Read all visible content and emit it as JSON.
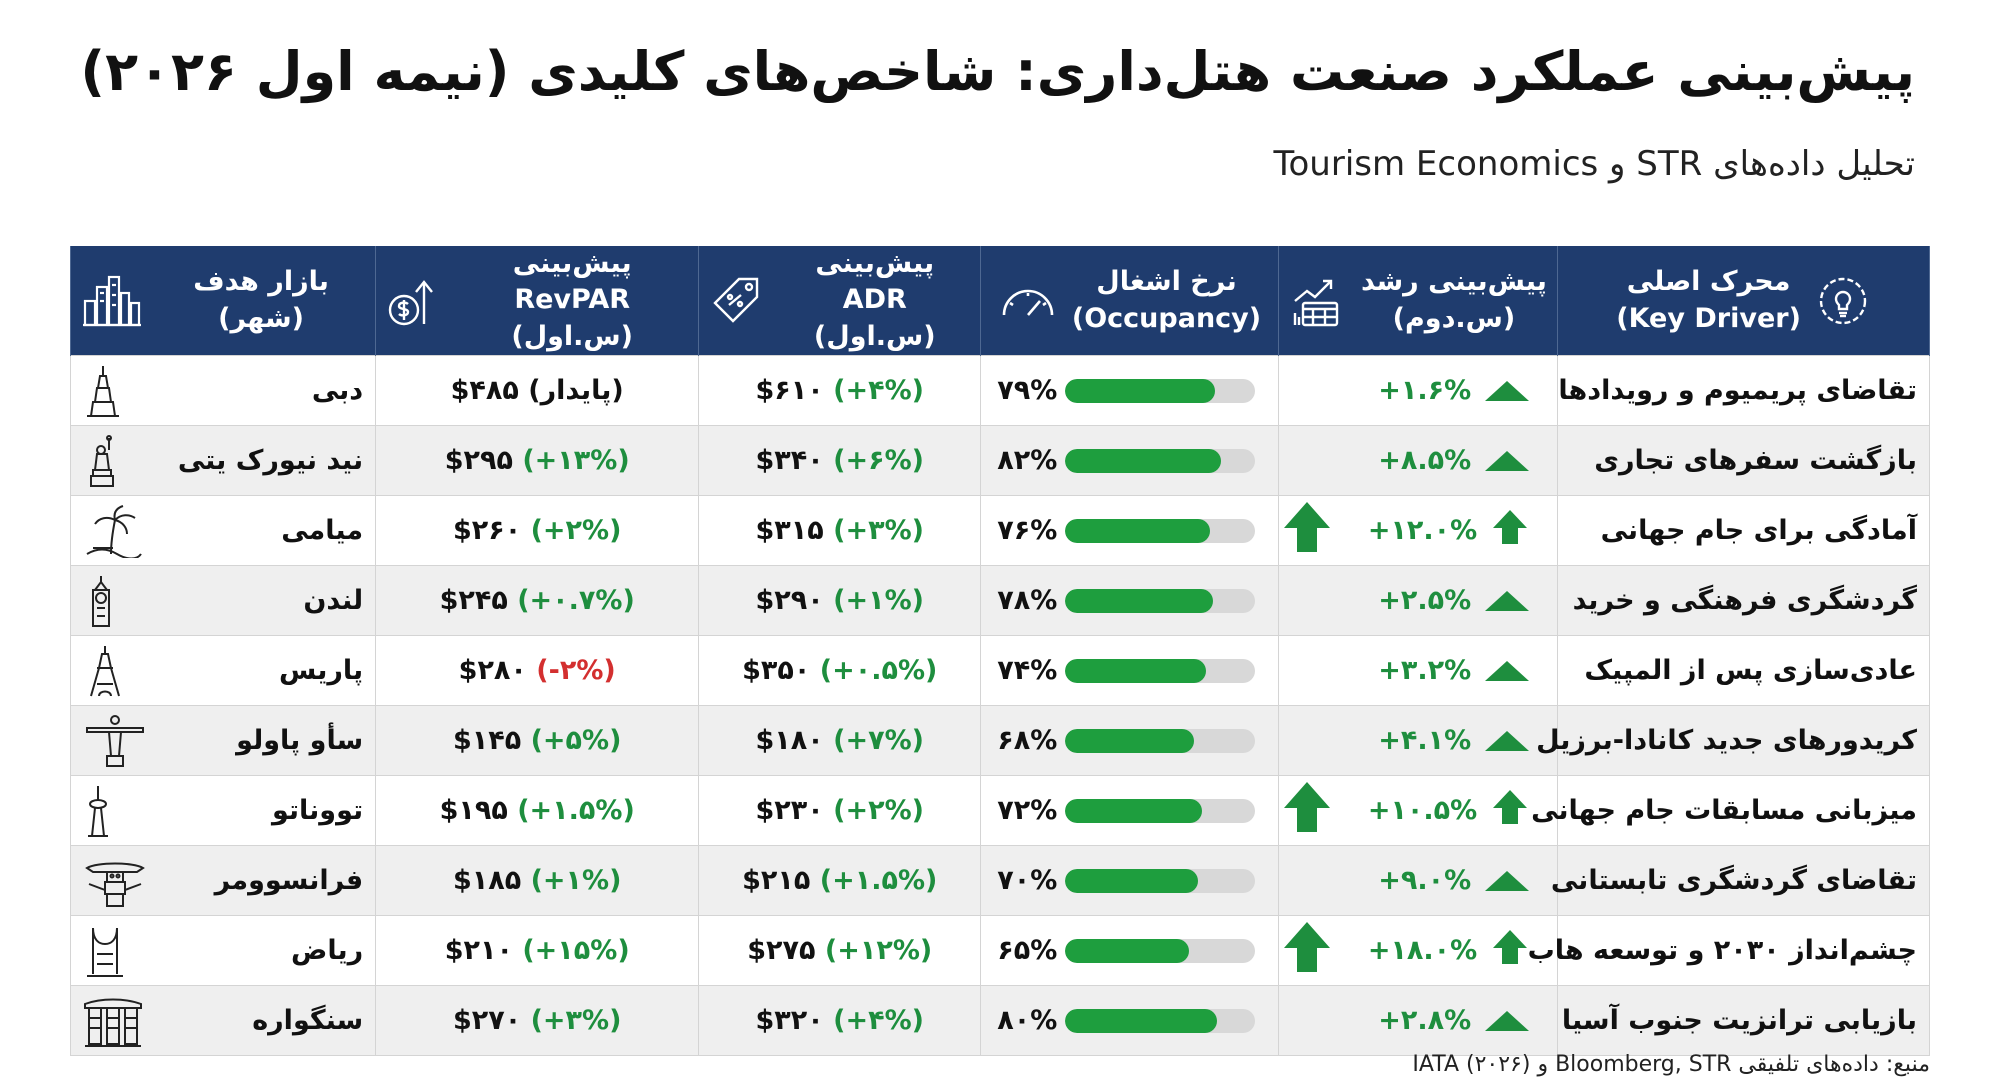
{
  "title": "پیش‌بینی عملکرد صنعت هتل‌داری: شاخص‌های کلیدی (نیمه اول ۲۰۲۶)",
  "subtitle": "تحلیل داده‌های STR و Tourism Economics",
  "colors": {
    "header_bg": "#1f3c6e",
    "positive": "#1e8e3e",
    "negative": "#d32f2f",
    "bar_fill": "#1e9e3e",
    "bar_track": "#d8d8d8",
    "row_alt": "#efefef"
  },
  "table": {
    "headers": {
      "driver": {
        "line1": "محرک اصلی",
        "line2": "(Key Driver)",
        "icon": "lightbulb-gear-icon"
      },
      "growth": {
        "line1": "پیش‌بینی رشد",
        "line2": "(س.دوم)",
        "icon": "growth-chart-calendar-icon"
      },
      "occupancy": {
        "line1": "نرخ اشغال",
        "line2": "(Occupancy)",
        "icon": "gauge-icon"
      },
      "adr": {
        "line1": "پیش‌بینی ADR",
        "line2": "(س.اول)",
        "icon": "price-tag-icon"
      },
      "revpar": {
        "line1": "پیش‌بینی RevPAR",
        "line2": "(س.اول)",
        "icon": "dollar-growth-icon"
      },
      "market": {
        "line1": "بازار هدف (شهر)",
        "line2": "",
        "icon": "city-skyline-icon"
      }
    },
    "rows": [
      {
        "driver": "تقاضای پریمیوم و رویدادها",
        "growth": "+۱.۶%",
        "growth_big_arrow": false,
        "occupancy_label": "۷۹%",
        "occupancy": 79,
        "adr_value": "$۶۱۰",
        "adr_change": "(+۴%)",
        "adr_change_sign": "positive",
        "revpar_value": "$۴۸۵",
        "revpar_change": "(پایدار)",
        "revpar_change_sign": "neutral",
        "city": "دبی",
        "city_icon": "burj-khalifa-icon"
      },
      {
        "driver": "بازگشت سفرهای تجاری",
        "growth": "+۸.۵%",
        "growth_big_arrow": false,
        "occupancy_label": "۸۲%",
        "occupancy": 82,
        "adr_value": "$۳۴۰",
        "adr_change": "(+۶%)",
        "adr_change_sign": "positive",
        "revpar_value": "$۲۹۵",
        "revpar_change": "(+۱۳%)",
        "revpar_change_sign": "positive",
        "city": "نید نیورک یتی",
        "city_icon": "statue-of-liberty-icon"
      },
      {
        "driver": "آمادگی برای جام جهانی",
        "growth": "+۱۲.۰%",
        "growth_big_arrow": true,
        "occupancy_label": "۷۶%",
        "occupancy": 76,
        "adr_value": "$۳۱۵",
        "adr_change": "(+۳%)",
        "adr_change_sign": "positive",
        "revpar_value": "$۲۶۰",
        "revpar_change": "(+۲%)",
        "revpar_change_sign": "positive",
        "city": "میامی",
        "city_icon": "palm-tree-icon"
      },
      {
        "driver": "گردشگری فرهنگی و خرید",
        "growth": "+۲.۵%",
        "growth_big_arrow": false,
        "occupancy_label": "۷۸%",
        "occupancy": 78,
        "adr_value": "$۲۹۰",
        "adr_change": "(+۱%)",
        "adr_change_sign": "positive",
        "revpar_value": "$۲۴۵",
        "revpar_change": "(+۰.۷%)",
        "revpar_change_sign": "positive",
        "city": "لندن",
        "city_icon": "big-ben-icon"
      },
      {
        "driver": "عادی‌سازی پس از المپیک",
        "growth": "+۳.۲%",
        "growth_big_arrow": false,
        "occupancy_label": "۷۴%",
        "occupancy": 74,
        "adr_value": "$۳۵۰",
        "adr_change": "(+۰.۵%)",
        "adr_change_sign": "positive",
        "revpar_value": "$۲۸۰",
        "revpar_change": "(-۲%)",
        "revpar_change_sign": "negative",
        "city": "پاریس",
        "city_icon": "eiffel-tower-icon"
      },
      {
        "driver": "کریدورهای جدید کانادا-برزیل",
        "growth": "+۴.۱%",
        "growth_big_arrow": false,
        "occupancy_label": "۶۸%",
        "occupancy": 68,
        "adr_value": "$۱۸۰",
        "adr_change": "(+۷%)",
        "adr_change_sign": "positive",
        "revpar_value": "$۱۴۵",
        "revpar_change": "(+۵%)",
        "revpar_change_sign": "positive",
        "city": "سأو پاولو",
        "city_icon": "christ-statue-icon"
      },
      {
        "driver": "میزبانی مسابقات جام جهانی",
        "growth": "+۱۰.۵%",
        "growth_big_arrow": true,
        "occupancy_label": "۷۲%",
        "occupancy": 72,
        "adr_value": "$۲۳۰",
        "adr_change": "(+۲%)",
        "adr_change_sign": "positive",
        "revpar_value": "$۱۹۵",
        "revpar_change": "(+۱.۵%)",
        "revpar_change_sign": "positive",
        "city": "تووناتو",
        "city_icon": "cn-tower-icon"
      },
      {
        "driver": "تقاضای گردشگری تابستانی",
        "growth": "+۹.۰%",
        "growth_big_arrow": false,
        "occupancy_label": "۷۰%",
        "occupancy": 70,
        "adr_value": "$۲۱۵",
        "adr_change": "(+۱.۵%)",
        "adr_change_sign": "positive",
        "revpar_value": "$۱۸۵",
        "revpar_change": "(+۱%)",
        "revpar_change_sign": "positive",
        "city": "فرانسوومر",
        "city_icon": "totem-pole-icon"
      },
      {
        "driver": "چشم‌انداز ۲۰۳۰ و توسعه هاب",
        "growth": "+۱۸.۰%",
        "growth_big_arrow": true,
        "occupancy_label": "۶۵%",
        "occupancy": 65,
        "adr_value": "$۲۷۵",
        "adr_change": "(+۱۲%)",
        "adr_change_sign": "positive",
        "revpar_value": "$۲۱۰",
        "revpar_change": "(+۱۵%)",
        "revpar_change_sign": "positive",
        "city": "ریاض",
        "city_icon": "kingdom-tower-icon"
      },
      {
        "driver": "بازیابی ترانزیت جنوب آسیا",
        "growth": "+۲.۸%",
        "growth_big_arrow": false,
        "occupancy_label": "۸۰%",
        "occupancy": 80,
        "adr_value": "$۳۲۰",
        "adr_change": "(+۴%)",
        "adr_change_sign": "positive",
        "revpar_value": "$۲۷۰",
        "revpar_change": "(+۳%)",
        "revpar_change_sign": "positive",
        "city": "سنگواره",
        "city_icon": "marina-bay-sands-icon"
      }
    ]
  },
  "source": "منبع: داده‌های تلفیقی Bloomberg, STR و IATA (۲۰۲۶)"
}
